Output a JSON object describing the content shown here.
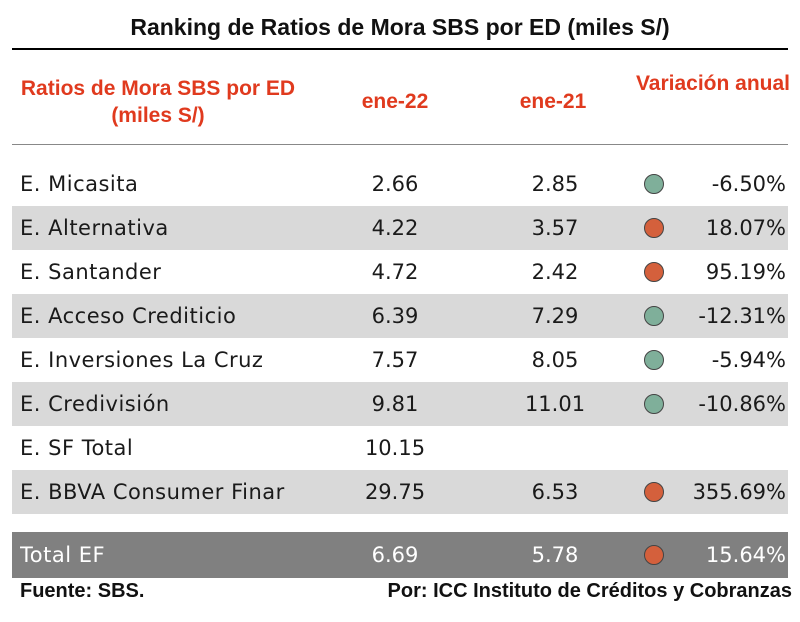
{
  "title": "Ranking de Ratios de Mora SBS por ED (miles S/)",
  "headers": {
    "name": "Ratios de Mora SBS por ED (miles S/)",
    "col1": "ene-22",
    "col2": "ene-21",
    "variation": "Variación anual"
  },
  "colors": {
    "green_dot": "#7faf9a",
    "red_dot": "#d4603c",
    "header_red": "#e03a1e",
    "shade": "#d9d9d9",
    "total_bg": "#808080"
  },
  "rows": [
    {
      "name": "E. Micasita",
      "v1": "2.66",
      "v2": "2.85",
      "indicator": "green",
      "variation": "-6.50%"
    },
    {
      "name": "E. Alternativa",
      "v1": "4.22",
      "v2": "3.57",
      "indicator": "red",
      "variation": "18.07%"
    },
    {
      "name": "E. Santander",
      "v1": "4.72",
      "v2": "2.42",
      "indicator": "red",
      "variation": "95.19%"
    },
    {
      "name": "E. Acceso Crediticio",
      "v1": "6.39",
      "v2": "7.29",
      "indicator": "green",
      "variation": "-12.31%"
    },
    {
      "name": "E. Inversiones La Cruz",
      "v1": "7.57",
      "v2": "8.05",
      "indicator": "green",
      "variation": "-5.94%"
    },
    {
      "name": "E. Credivisión",
      "v1": "9.81",
      "v2": "11.01",
      "indicator": "green",
      "variation": "-10.86%"
    },
    {
      "name": "E. SF Total",
      "v1": "10.15",
      "v2": "",
      "indicator": "",
      "variation": ""
    },
    {
      "name": "E. BBVA Consumer Finar",
      "v1": "29.75",
      "v2": "6.53",
      "indicator": "red",
      "variation": "355.69%"
    }
  ],
  "total": {
    "name": "Total EF",
    "v1": "6.69",
    "v2": "5.78",
    "indicator": "red",
    "variation": "15.64%"
  },
  "footer": {
    "source": "Fuente: SBS.",
    "credit": "Por: ICC Instituto de Créditos y Cobranzas"
  }
}
